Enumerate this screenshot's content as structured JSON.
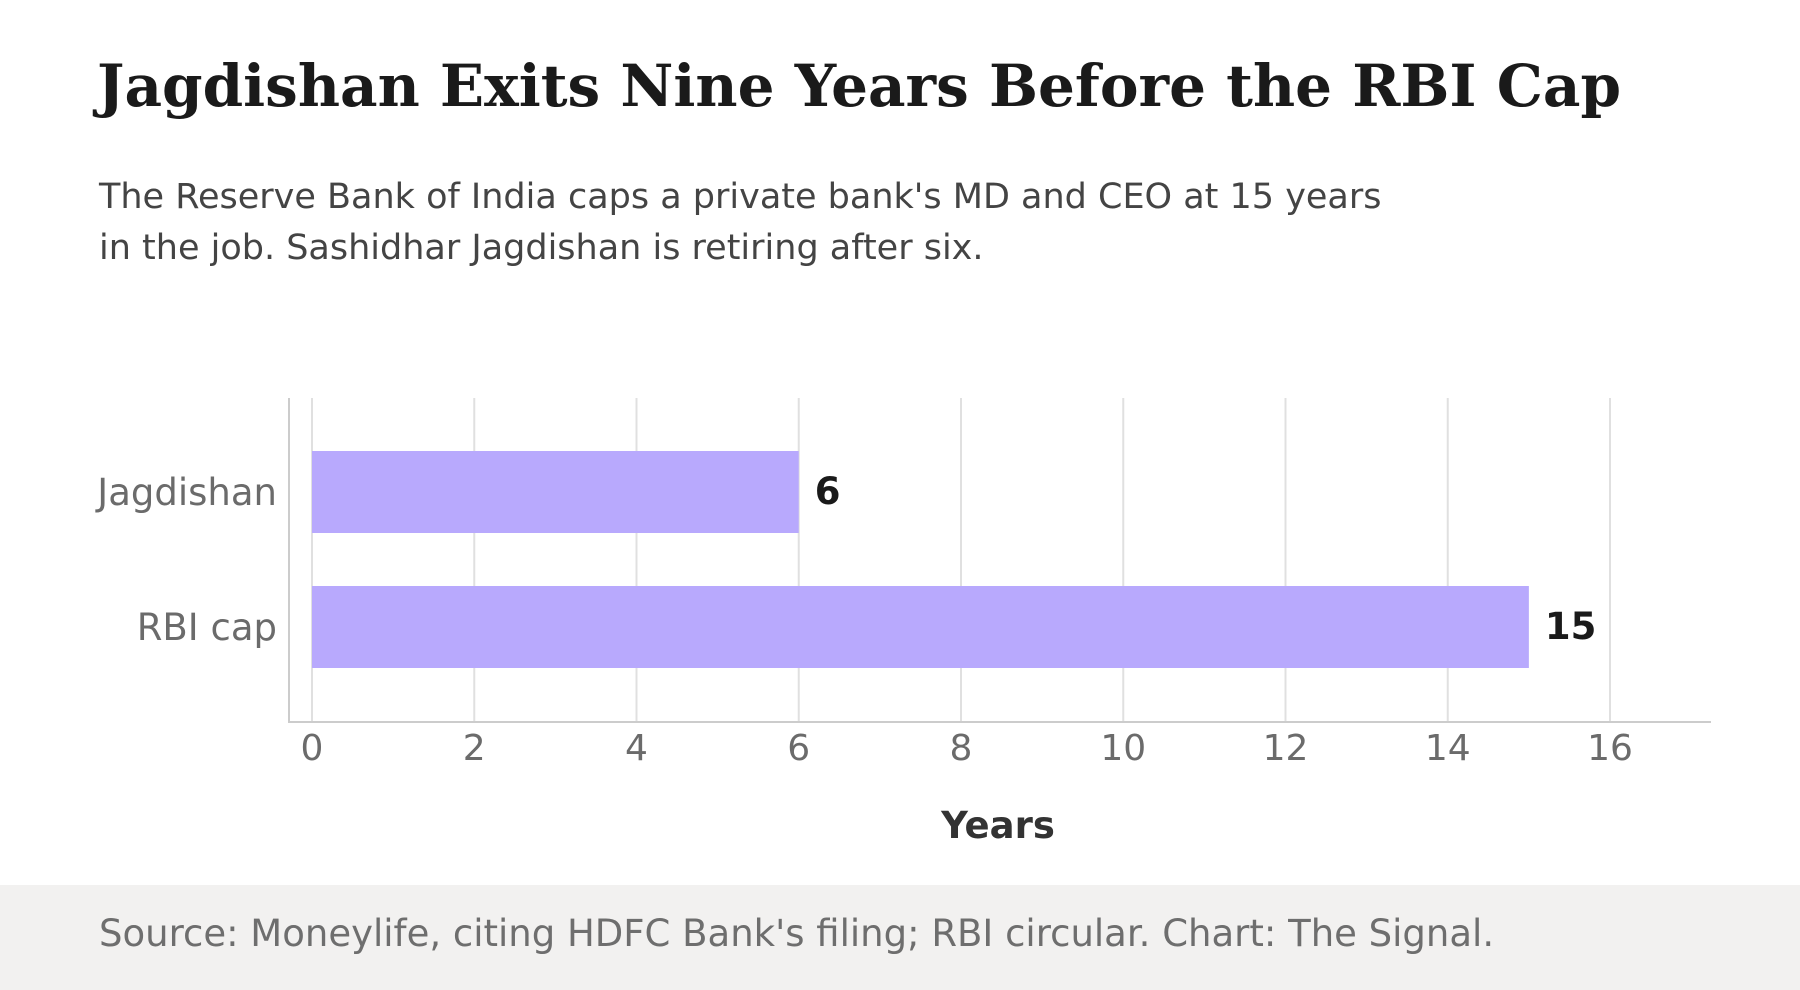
{
  "title": "Jagdishan Exits Nine Years Before the RBI Cap",
  "subtitle": [
    "The Reserve Bank of India caps a private bank's MD and CEO at 15 years",
    "in the job. Sashidhar Jagdishan is retiring after six."
  ],
  "source": "Source: Moneylife, citing HDFC Bank's filing; RBI circular. Chart: The Signal.",
  "colors": {
    "bar": "#b8a9fd",
    "grid": "#e0e0e0",
    "axis": "#cccccc",
    "tick_label": "#6b6b6b",
    "value_label": "#1a1a1a",
    "axis_title": "#333333",
    "footer_bg": "#f2f1f0"
  },
  "chart_data": {
    "type": "bar",
    "orientation": "horizontal",
    "categories": [
      "Jagdishan",
      "RBI cap"
    ],
    "values": [
      6,
      15
    ],
    "data_labels": [
      "6",
      "15"
    ],
    "xlabel": "Years",
    "ylabel": "",
    "xlim": [
      0,
      16
    ],
    "xticks": [
      0,
      2,
      4,
      6,
      8,
      10,
      12,
      14,
      16
    ],
    "grid": "vertical",
    "legend": "none"
  }
}
